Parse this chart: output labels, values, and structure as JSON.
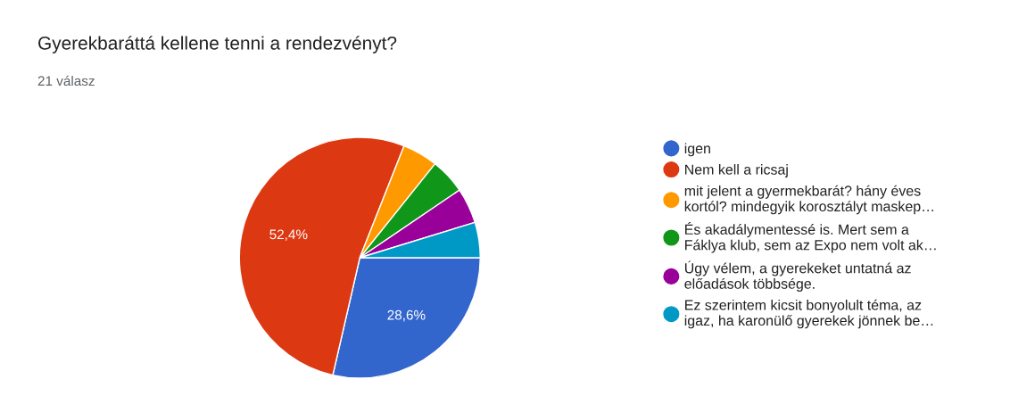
{
  "chart_data": {
    "type": "pie",
    "title": "Gyerekbaráttá kellene tenni a rendezvényt?",
    "subtitle": "21 válasz",
    "categories": [
      "igen",
      "Nem kell a ricsaj",
      "mit jelent a gyermekbarát? hány éves\nkortól? mindegyik korosztályt maskep…",
      "És akadálymentessé is. Mert sem a\nFáklya klub, sem az Expo nem volt ak…",
      "Úgy vélem, a gyerekeket untatná az\nelőadások többsége.",
      "Ez szerintem kicsit bonyolult téma, az\nigaz, ha karonülő gyerekek jönnek be…"
    ],
    "values": [
      28.6,
      52.4,
      4.75,
      4.75,
      4.75,
      4.75
    ],
    "colors": [
      "#3366cc",
      "#dc3912",
      "#ff9900",
      "#109618",
      "#990099",
      "#0099c6"
    ],
    "value_labels": [
      "28,6%",
      "52,4%",
      null,
      null,
      null,
      null
    ],
    "legend": "right"
  }
}
